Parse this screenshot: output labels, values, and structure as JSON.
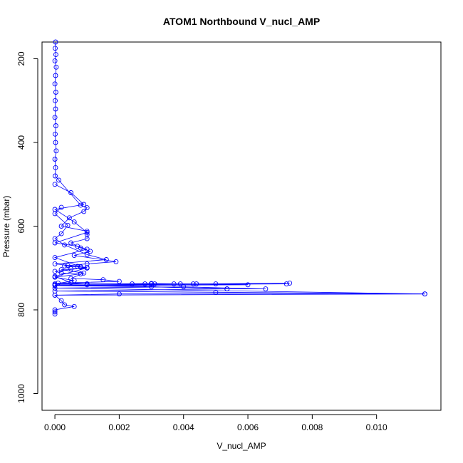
{
  "chart_data": {
    "type": "line",
    "title": "ATOM1 Northbound V_nucl_AMP",
    "xlabel": "V_nucl_AMP",
    "ylabel": "Pressure (mbar)",
    "xlim": [
      -0.0004,
      0.012
    ],
    "ylim": [
      160,
      1040
    ],
    "y_reversed": true,
    "x_ticks": [
      "0.000",
      "0.002",
      "0.004",
      "0.006",
      "0.008",
      "0.010"
    ],
    "y_ticks": [
      "200",
      "400",
      "600",
      "800",
      "1000"
    ],
    "grid": false,
    "marker": "open-circle",
    "series_color": "#0000ff",
    "series": [
      {
        "points": [
          [
            2e-05,
            160
          ],
          [
            1e-05,
            175
          ],
          [
            3e-05,
            190
          ],
          [
            0.0,
            205
          ],
          [
            4e-05,
            220
          ],
          [
            2e-05,
            240
          ],
          [
            0.0,
            260
          ],
          [
            3e-05,
            280
          ],
          [
            1e-05,
            300
          ],
          [
            2e-05,
            320
          ],
          [
            0.0,
            340
          ],
          [
            3e-05,
            360
          ],
          [
            1e-05,
            380
          ],
          [
            2e-05,
            400
          ],
          [
            4e-05,
            420
          ],
          [
            0.0,
            440
          ],
          [
            2e-05,
            460
          ],
          [
            1e-05,
            480
          ],
          [
            0.00012,
            490
          ],
          [
            0.0008,
            550
          ],
          [
            0.001,
            556
          ],
          [
            0.0009,
            565
          ],
          [
            0.00045,
            580
          ],
          [
            0.0002,
            600
          ],
          [
            0.001,
            612
          ],
          [
            0.001,
            620
          ],
          [
            0.001,
            630
          ],
          [
            0.0005,
            640
          ],
          [
            0.0008,
            652
          ],
          [
            0.0011,
            660
          ],
          [
            0.0006,
            670
          ],
          [
            0.0019,
            685
          ],
          [
            0.001,
            690
          ],
          [
            0.0003,
            695
          ],
          [
            0.0008,
            698
          ],
          [
            0.001,
            700
          ],
          [
            0.0005,
            702
          ],
          [
            0.0002,
            704
          ],
          [
            0.0009,
            712
          ],
          [
            0.0005,
            725
          ],
          [
            0.0015,
            728
          ],
          [
            0.002,
            732
          ],
          [
            0.0001,
            736
          ],
          [
            0.001,
            738
          ],
          [
            0.0024,
            738
          ],
          [
            0.0028,
            738
          ],
          [
            0.0031,
            738
          ],
          [
            0.0037,
            738
          ],
          [
            0.0039,
            738
          ],
          [
            0.0043,
            738
          ],
          [
            0.0044,
            738
          ],
          [
            0.0073,
            736
          ],
          [
            0.005,
            738
          ],
          [
            0.001,
            740
          ],
          [
            0.00535,
            750
          ],
          [
            0.00655,
            750
          ],
          [
            0.004,
            745
          ],
          [
            0.0,
            748
          ],
          [
            0.0115,
            762
          ],
          [
            0.002,
            762
          ],
          [
            0.0,
            765
          ],
          [
            0.0002,
            778
          ],
          [
            0.0003,
            788
          ],
          [
            0.0006,
            792
          ],
          [
            0.0,
            800
          ],
          [
            0.0,
            805
          ],
          [
            0.0,
            810
          ]
        ]
      },
      {
        "points": [
          [
            0.0,
            500
          ],
          [
            0.0005,
            520
          ],
          [
            0.0009,
            548
          ],
          [
            0.0,
            560
          ],
          [
            0.0006,
            590
          ],
          [
            0.001,
            615
          ],
          [
            0.0,
            640
          ],
          [
            0.0007,
            648
          ],
          [
            0.001,
            655
          ],
          [
            0.0,
            675
          ],
          [
            0.0008,
            697
          ],
          [
            0.001,
            700
          ],
          [
            0.0,
            720
          ],
          [
            0.0005,
            735
          ],
          [
            0.001,
            738
          ],
          [
            0.0,
            739
          ],
          [
            0.003,
            737
          ],
          [
            0.006,
            740
          ],
          [
            0.0,
            742
          ],
          [
            0.003,
            745
          ],
          [
            0.00535,
            750
          ],
          [
            0.0,
            755
          ],
          [
            0.005,
            758
          ],
          [
            0.0115,
            762
          ],
          [
            0.0,
            765
          ]
        ]
      },
      {
        "points": [
          [
            0.0002,
            555
          ],
          [
            0.0,
            570
          ],
          [
            0.0004,
            598
          ],
          [
            0.0002,
            618
          ],
          [
            0.0,
            630
          ],
          [
            0.0003,
            645
          ],
          [
            0.001,
            668
          ],
          [
            0.0016,
            680
          ],
          [
            0.0,
            690
          ],
          [
            0.0004,
            694
          ],
          [
            0.0007,
            696
          ],
          [
            0.001,
            699
          ],
          [
            0.0,
            708
          ],
          [
            0.0002,
            712
          ],
          [
            0.0008,
            714
          ],
          [
            0.0,
            722
          ],
          [
            0.0006,
            730
          ],
          [
            0.0,
            738
          ],
          [
            0.003,
            738
          ],
          [
            0.0072,
            738
          ],
          [
            0.0,
            741
          ]
        ]
      }
    ]
  }
}
